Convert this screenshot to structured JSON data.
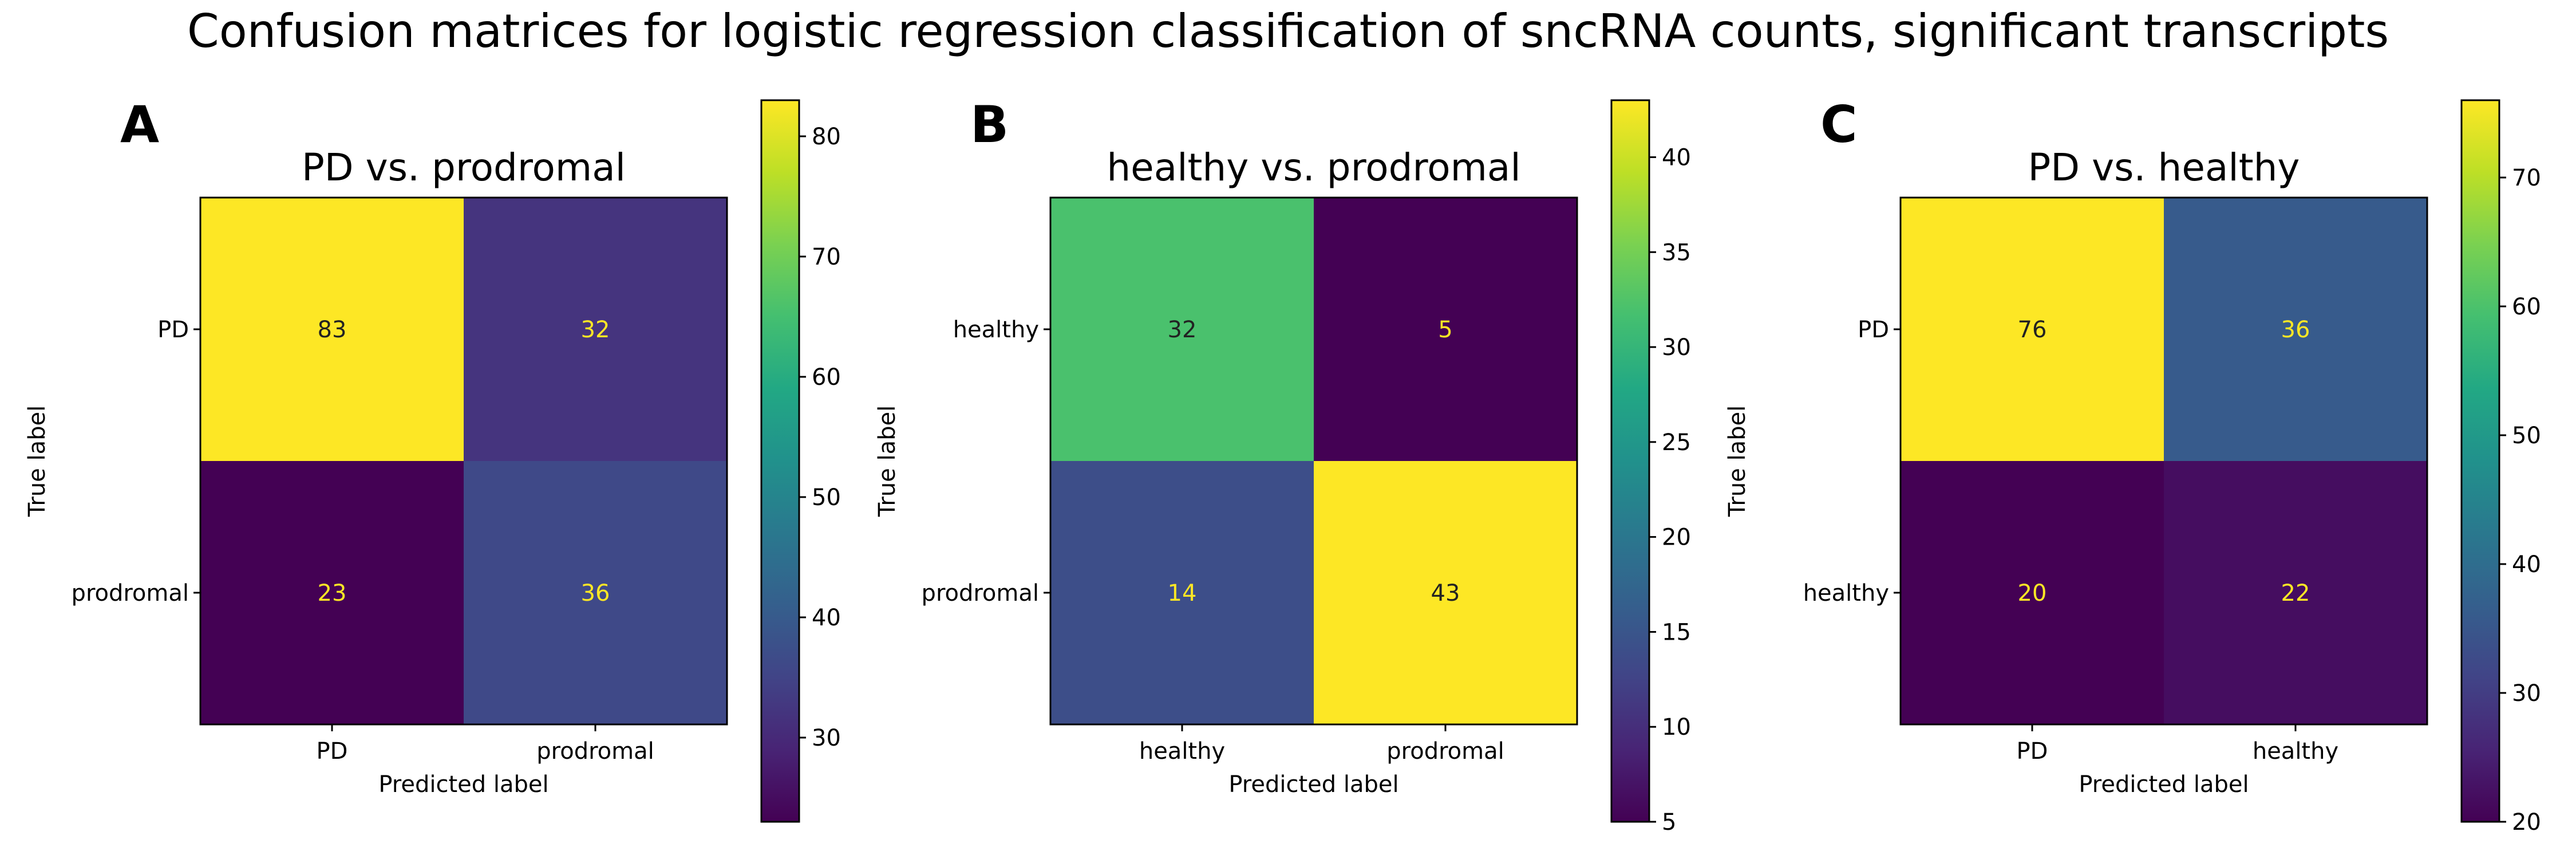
{
  "figure": {
    "suptitle": "Confusion matrices for logistic regression classification of sncRNA counts, significant transcripts"
  },
  "chart_data": [
    {
      "type": "heatmap",
      "panel_label": "A",
      "title": "PD vs. prodromal",
      "xlabel": "Predicted label",
      "ylabel": "True label",
      "row_labels": [
        "PD",
        "prodromal"
      ],
      "col_labels": [
        "PD",
        "prodromal"
      ],
      "values": [
        [
          83,
          32
        ],
        [
          23,
          36
        ]
      ],
      "colorbar": {
        "min": 23,
        "max": 83,
        "ticks": [
          30,
          40,
          50,
          60,
          70,
          80
        ]
      },
      "colormap": "viridis"
    },
    {
      "type": "heatmap",
      "panel_label": "B",
      "title": "healthy vs. prodromal",
      "xlabel": "Predicted label",
      "ylabel": "True label",
      "row_labels": [
        "healthy",
        "prodromal"
      ],
      "col_labels": [
        "healthy",
        "prodromal"
      ],
      "values": [
        [
          32,
          5
        ],
        [
          14,
          43
        ]
      ],
      "colorbar": {
        "min": 5,
        "max": 43,
        "ticks": [
          5,
          10,
          15,
          20,
          25,
          30,
          35,
          40
        ]
      },
      "colormap": "viridis"
    },
    {
      "type": "heatmap",
      "panel_label": "C",
      "title": "PD vs. healthy",
      "xlabel": "Predicted label",
      "ylabel": "True label",
      "row_labels": [
        "PD",
        "healthy"
      ],
      "col_labels": [
        "PD",
        "healthy"
      ],
      "values": [
        [
          76,
          36
        ],
        [
          20,
          22
        ]
      ],
      "colorbar": {
        "min": 20,
        "max": 76,
        "ticks": [
          20,
          30,
          40,
          50,
          60,
          70
        ]
      },
      "colormap": "viridis"
    }
  ]
}
